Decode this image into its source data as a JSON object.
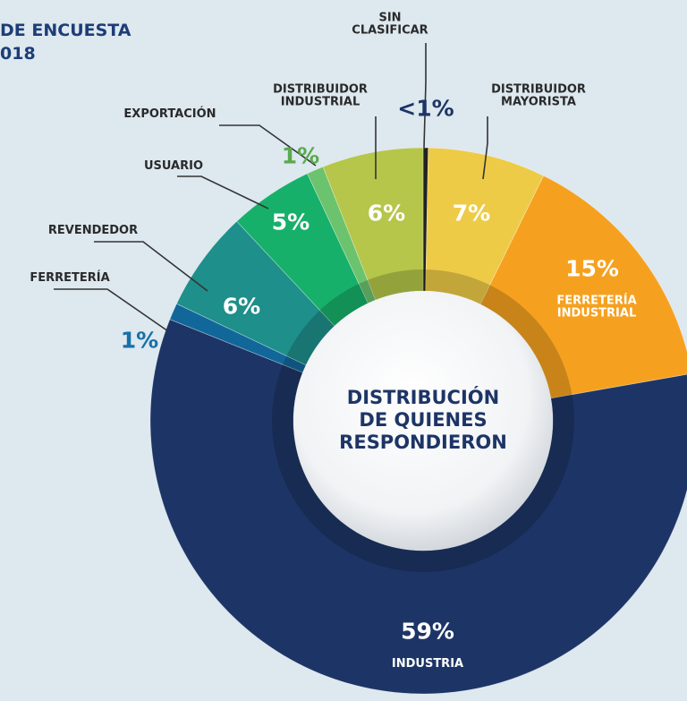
{
  "chart_data": {
    "type": "pie",
    "title": "DE ENCUESTA\n018",
    "center_label": "DISTRIBUCIÓN DE QUIENES RESPONDIERON",
    "categories": [
      "SIN CLASIFICAR",
      "DISTRIBUIDOR MAYORISTA",
      "FERRETERÍA INDUSTRIAL",
      "INDUSTRIA",
      "FERRETERÍA",
      "REVENDEDOR",
      "USUARIO",
      "EXPORTACIÓN",
      "DISTRIBUIDOR INDUSTRIAL"
    ],
    "values": [
      0.3,
      7,
      15,
      59,
      1,
      6,
      5,
      1,
      6
    ],
    "value_labels": [
      "<1%",
      "7%",
      "15%",
      "59%",
      "1%",
      "6%",
      "5%",
      "1%",
      "6%"
    ],
    "colors": [
      "#222222",
      "#eecb47",
      "#f5a11f",
      "#1d3566",
      "#12679a",
      "#1e8f8a",
      "#17b06a",
      "#6cc36e",
      "#b5c64a"
    ]
  }
}
